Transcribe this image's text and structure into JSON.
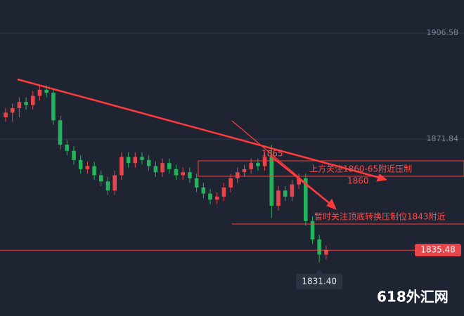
{
  "chart_data": {
    "type": "candlestick",
    "open": [
      1879,
      1880.5,
      1882,
      1884,
      1883,
      1886,
      1888,
      1887,
      1878,
      1870,
      1868,
      1865,
      1862,
      1863,
      1860,
      1858,
      1855,
      1860,
      1866,
      1864,
      1866,
      1865,
      1863,
      1861,
      1864,
      1862,
      1860,
      1861,
      1859,
      1856,
      1854,
      1852,
      1853,
      1856,
      1859,
      1861,
      1862,
      1864,
      1863,
      1866,
      1850,
      1855,
      1853,
      1857,
      1859,
      1845,
      1839,
      1834
    ],
    "high": [
      1882,
      1883.5,
      1885.5,
      1885.5,
      1887.5,
      1889.5,
      1889.5,
      1888.5,
      1879.5,
      1871.5,
      1869.5,
      1866.5,
      1864.5,
      1864.5,
      1861.5,
      1859.5,
      1861.5,
      1867.5,
      1867.5,
      1867.5,
      1867.5,
      1866.5,
      1864.5,
      1865.5,
      1865.5,
      1863.5,
      1862.5,
      1862.5,
      1860.5,
      1857.5,
      1855.5,
      1854.5,
      1857.5,
      1860.5,
      1862.5,
      1863.5,
      1865.5,
      1865.5,
      1867.5,
      1870,
      1856.5,
      1856.5,
      1858.5,
      1860.5,
      1860.5,
      1846.5,
      1840.5,
      1837
    ],
    "low": [
      1877.5,
      1877.5,
      1879,
      1881.5,
      1881.5,
      1884.5,
      1885.5,
      1876.5,
      1868.5,
      1866.5,
      1863.5,
      1860.5,
      1860.5,
      1858.5,
      1856.5,
      1853.5,
      1853.5,
      1858.5,
      1862.5,
      1862.5,
      1863.5,
      1861.5,
      1859.5,
      1859.5,
      1860.5,
      1858.5,
      1858.5,
      1857.5,
      1854.5,
      1852.5,
      1850.5,
      1850.5,
      1851.5,
      1854.5,
      1857.5,
      1859.5,
      1860.5,
      1861.5,
      1861.5,
      1846,
      1848.5,
      1851.5,
      1851.5,
      1855.5,
      1843.5,
      1837.5,
      1831.4,
      1832.5
    ],
    "close": [
      1880.5,
      1882,
      1884,
      1883,
      1886,
      1888,
      1887,
      1878,
      1870,
      1868,
      1865,
      1862,
      1863,
      1860,
      1858,
      1855,
      1860,
      1866,
      1864,
      1866,
      1865,
      1863,
      1861,
      1864,
      1862,
      1860,
      1861,
      1859,
      1856,
      1854,
      1852,
      1853,
      1856,
      1859,
      1861,
      1862,
      1864,
      1863,
      1866,
      1850,
      1855,
      1853,
      1857,
      1859,
      1845,
      1839,
      1834,
      1835.48
    ],
    "up_color": "#e8454a",
    "down_color": "#22b35b",
    "ylim": [
      1813.9,
      1917.4
    ],
    "yticks": [
      1906.58,
      1871.84
    ],
    "grid": true,
    "current_price": 1835.48,
    "low_label": {
      "value": 1831.4,
      "label": "1831.40"
    },
    "annotations": [
      "上方关注1860-65附近压制",
      "1860",
      "1865",
      "暂时关注顶底转换压制位1843附近"
    ],
    "watermark": "618外汇网"
  }
}
